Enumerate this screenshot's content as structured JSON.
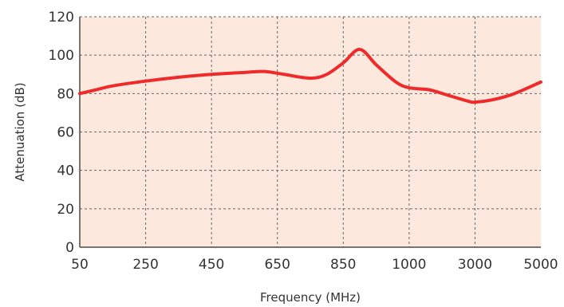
{
  "chart_data": {
    "type": "line",
    "title": "",
    "xlabel": "Frequency (MHz)",
    "ylabel": "Attenuation (dB)",
    "categories": [
      "50",
      "250",
      "450",
      "650",
      "850",
      "1000",
      "3000",
      "5000"
    ],
    "ylim": [
      0,
      120
    ],
    "yticks": [
      0,
      20,
      40,
      60,
      80,
      100,
      120
    ],
    "x_scale": "categorical (evenly spaced tick labels)",
    "grid": true,
    "legend": "none",
    "series": [
      {
        "color": "#ee2a2a",
        "points": [
          {
            "x": 0.0,
            "y": 80
          },
          {
            "x": 0.25,
            "y": 82
          },
          {
            "x": 0.5,
            "y": 84
          },
          {
            "x": 1.0,
            "y": 86.5
          },
          {
            "x": 1.5,
            "y": 88.5
          },
          {
            "x": 2.0,
            "y": 90
          },
          {
            "x": 2.5,
            "y": 91
          },
          {
            "x": 2.8,
            "y": 91.5
          },
          {
            "x": 3.1,
            "y": 90
          },
          {
            "x": 3.5,
            "y": 88
          },
          {
            "x": 3.75,
            "y": 90
          },
          {
            "x": 4.0,
            "y": 96
          },
          {
            "x": 4.25,
            "y": 103
          },
          {
            "x": 4.5,
            "y": 95
          },
          {
            "x": 4.8,
            "y": 86
          },
          {
            "x": 5.0,
            "y": 83
          },
          {
            "x": 5.3,
            "y": 82
          },
          {
            "x": 5.6,
            "y": 79
          },
          {
            "x": 5.9,
            "y": 76
          },
          {
            "x": 6.0,
            "y": 75.5
          },
          {
            "x": 6.3,
            "y": 77
          },
          {
            "x": 6.6,
            "y": 80
          },
          {
            "x": 7.0,
            "y": 86
          }
        ]
      }
    ]
  },
  "colors": {
    "plot_background": "#fce8dc",
    "grid_line": "#666666",
    "axis_line": "#4a4a4a",
    "text": "#333333"
  }
}
